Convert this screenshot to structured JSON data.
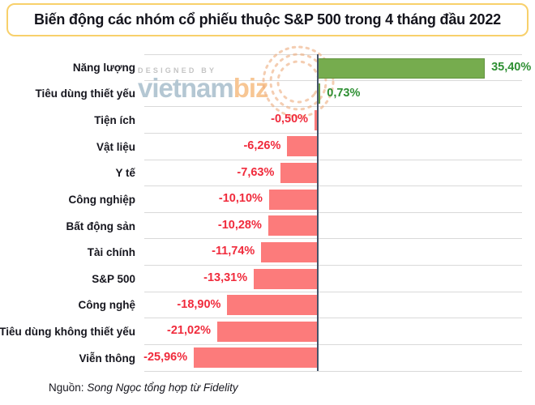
{
  "title": "Biến động các nhóm cổ phiếu thuộc S&P 500 trong 4 tháng đầu 2022",
  "watermark": {
    "designed_by": "DESIGNED BY",
    "brand_primary": "vietnam",
    "brand_secondary": "biz"
  },
  "footer": {
    "label": "Nguồn:",
    "source": "Song Ngọc tổng hợp từ Fidelity"
  },
  "colors": {
    "title_border": "#f8d06b",
    "positive_bar": "#76ac4e",
    "negative_bar": "#fc7b7b",
    "positive_text": "#2e8f33",
    "negative_text": "#f02b3c",
    "gridline": "#d9d9d9",
    "zero_axis": "#44546a",
    "watermark_blue": "#b4c7d3",
    "watermark_orange": "#f7c694"
  },
  "chart_data": {
    "type": "bar",
    "orientation": "horizontal",
    "title": "Biến động các nhóm cổ phiếu thuộc S&P 500 trong 4 tháng đầu 2022",
    "xlabel": "",
    "ylabel": "",
    "xlim": [
      -36.5,
      43
    ],
    "grid": "horizontal-row-separators",
    "legend": "none",
    "categories": [
      "Năng lượng",
      "Tiêu dùng thiết yếu",
      "Tiện ích",
      "Vật liệu",
      "Y tế",
      "Công nghiệp",
      "Bất động sản",
      "Tài chính",
      "S&P 500",
      "Công nghệ",
      "Tiêu dùng không thiết yếu",
      "Viễn thông"
    ],
    "values": [
      35.4,
      0.73,
      -0.5,
      -6.26,
      -7.63,
      -10.1,
      -10.28,
      -11.74,
      -13.31,
      -18.9,
      -21.02,
      -25.96
    ],
    "value_labels": [
      "35,40%",
      "0,73%",
      "-0,50%",
      "-6,26%",
      "-7,63%",
      "-10,10%",
      "-10,28%",
      "-11,74%",
      "-13,31%",
      "-18,90%",
      "-21,02%",
      "-25,96%"
    ]
  }
}
